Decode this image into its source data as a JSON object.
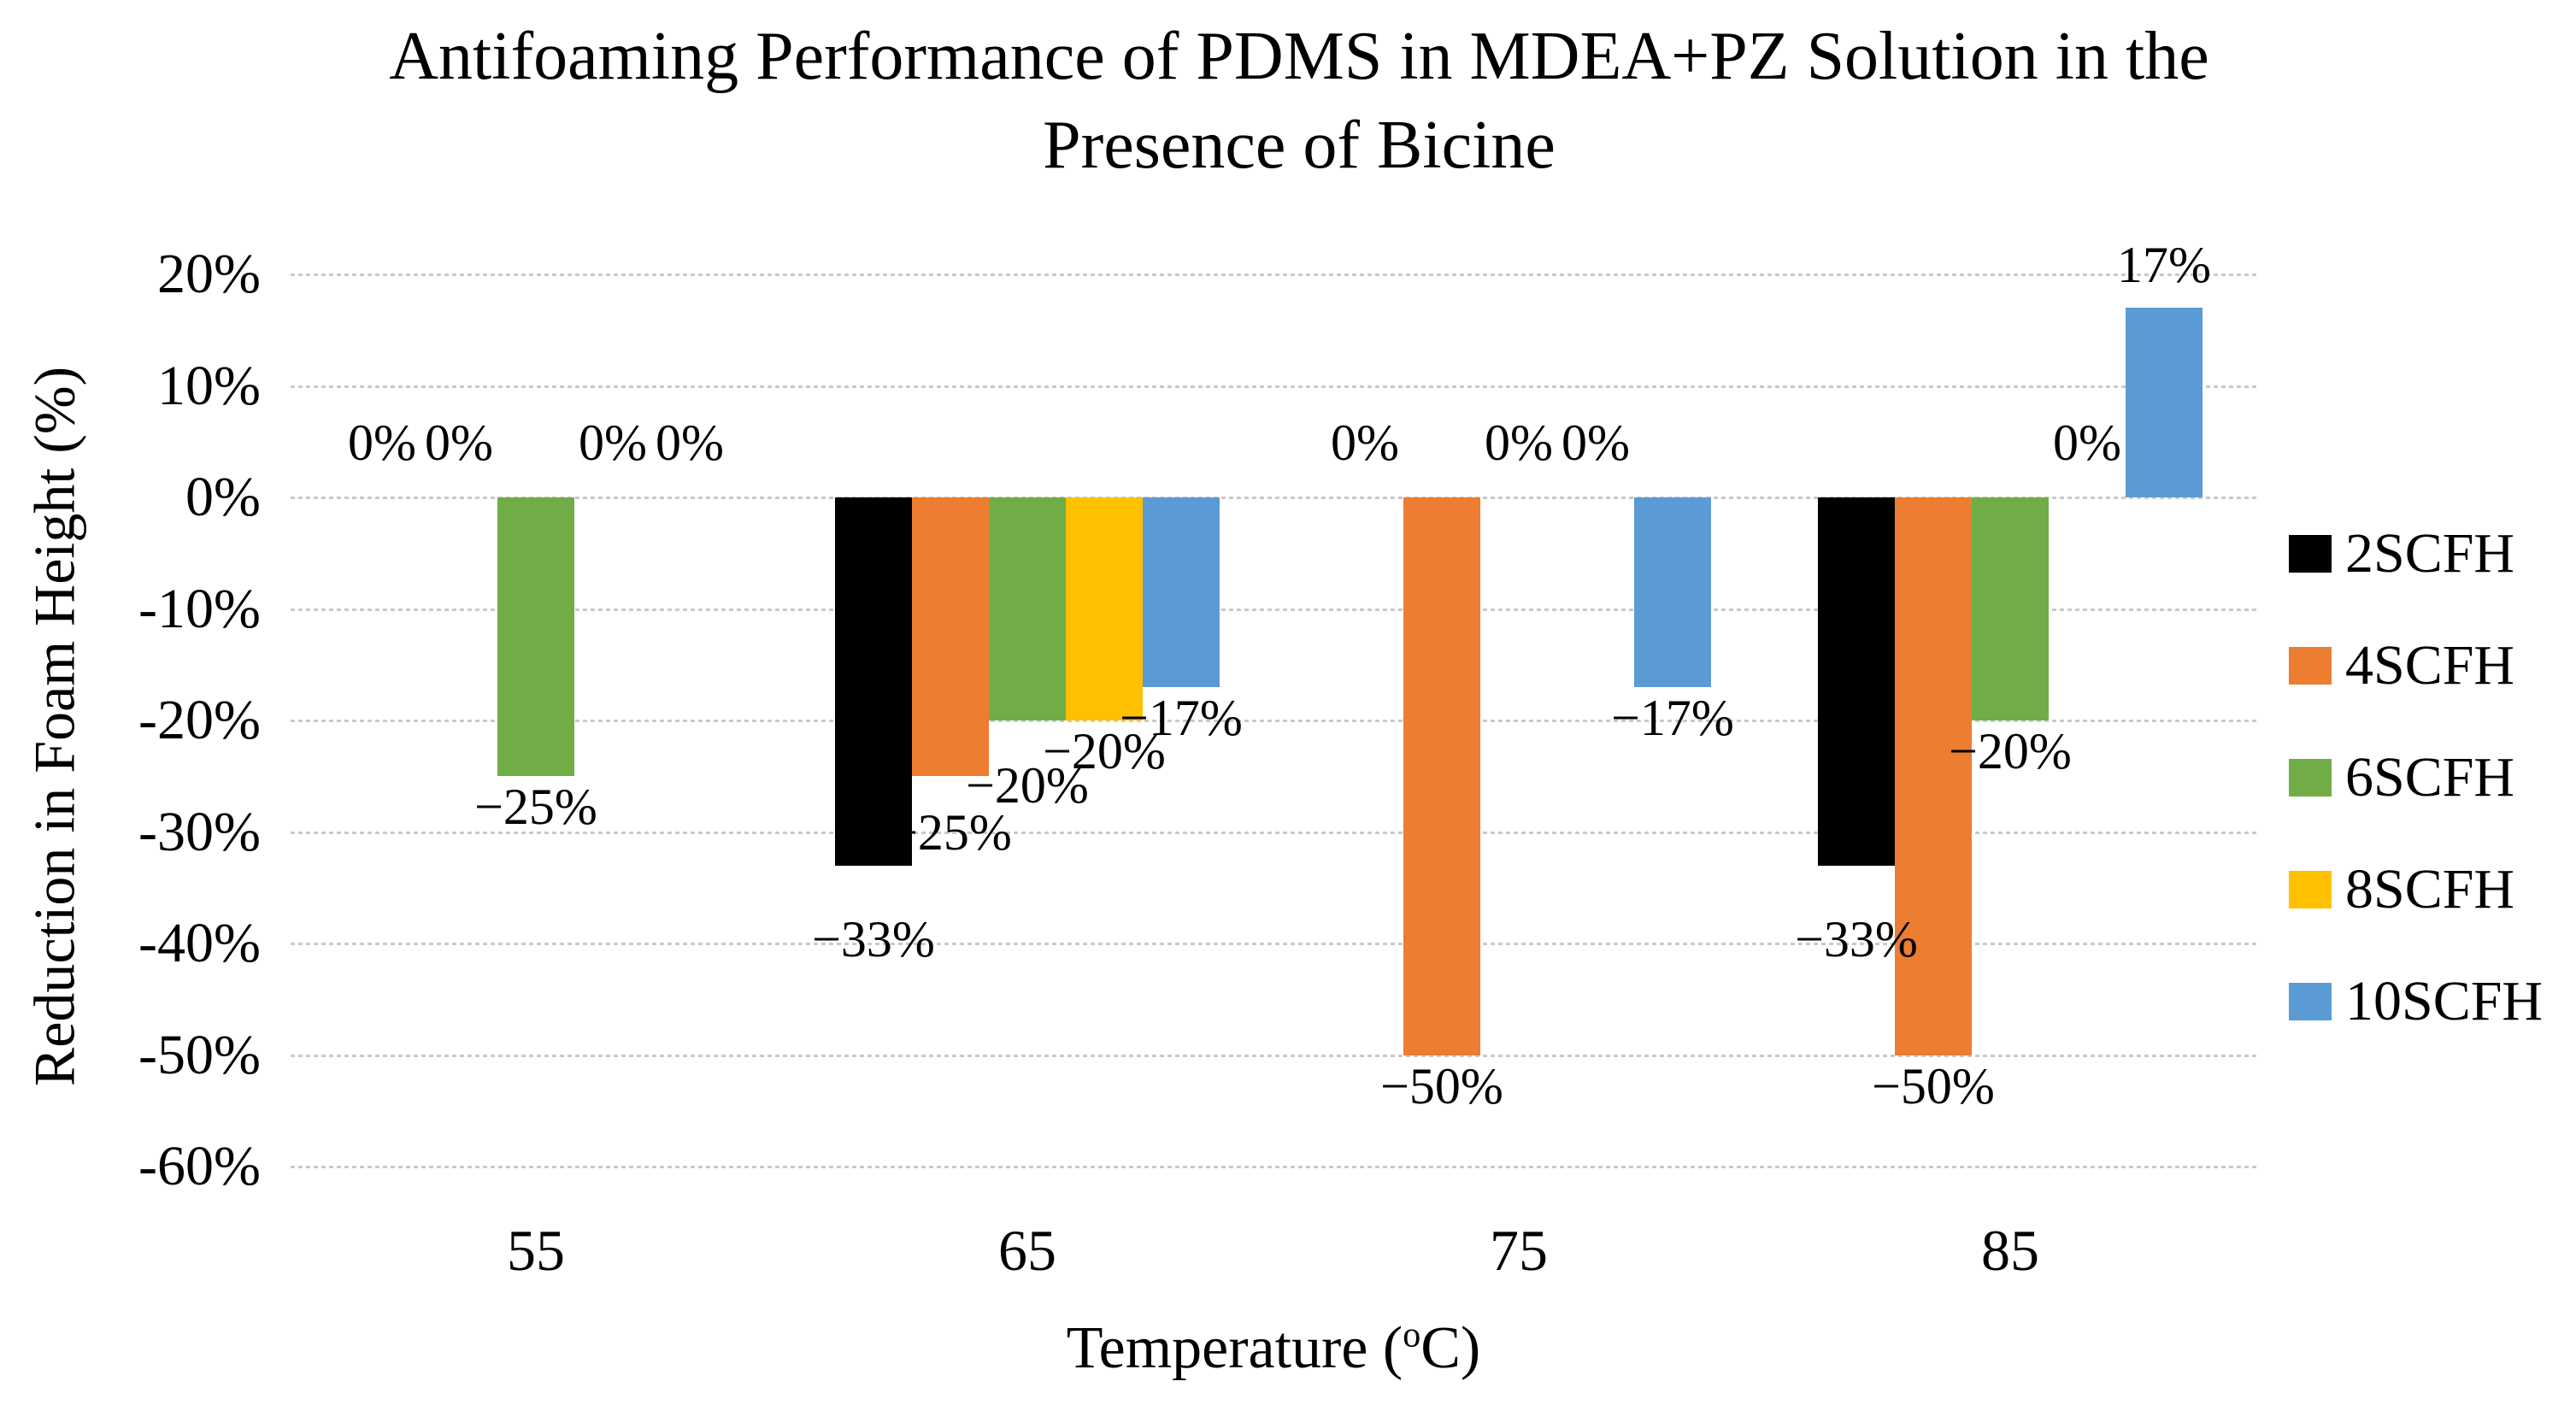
{
  "chart_data": {
    "type": "bar",
    "title": "Antifoaming Performance of PDMS in MDEA+PZ Solution in the Presence of Bicine",
    "title_lines": [
      "Antifoaming Performance of PDMS in MDEA+PZ Solution in the",
      "Presence of Bicine"
    ],
    "ylabel": "Reduction in Foam Height (%)",
    "xlabel": "Temperature (oC)",
    "xlabel_parts": {
      "prefix": "Temperature (",
      "degree_sup": "o",
      "suffix": "C)"
    },
    "categories": [
      "55",
      "65",
      "75",
      "85"
    ],
    "y_ticks": [
      "20%",
      "10%",
      "0%",
      "-10%",
      "-20%",
      "-30%",
      "-40%",
      "-50%",
      "-60%"
    ],
    "y_tick_values": [
      20,
      10,
      0,
      -10,
      -20,
      -30,
      -40,
      -50,
      -60
    ],
    "ylim": [
      -60,
      20
    ],
    "grid": "horizontal-dotted",
    "legend_position": "right",
    "series": [
      {
        "name": "2SCFH",
        "color": "#000000",
        "values": [
          0,
          -33,
          0,
          -33
        ],
        "labels": [
          "0%",
          "−33%",
          "0%",
          "−33%"
        ]
      },
      {
        "name": "4SCFH",
        "color": "#ED7D31",
        "values": [
          0,
          -25,
          -50,
          -50
        ],
        "labels": [
          "0%",
          "−25%",
          "−50%",
          "−50%"
        ]
      },
      {
        "name": "6SCFH",
        "color": "#70AD47",
        "values": [
          -25,
          -20,
          0,
          -20
        ],
        "labels": [
          "−25%",
          "−20%",
          "0%",
          "−20%"
        ]
      },
      {
        "name": "8SCFH",
        "color": "#FFC000",
        "values": [
          0,
          -20,
          0,
          0
        ],
        "labels": [
          "0%",
          "−20%",
          "0%",
          "0%"
        ]
      },
      {
        "name": "10SCFH",
        "color": "#5B9BD5",
        "values": [
          0,
          -17,
          -17,
          17
        ],
        "labels": [
          "0%",
          "−17%",
          "−17%",
          "17%"
        ]
      }
    ]
  },
  "colors": {
    "background": "#ffffff",
    "gridline": "#c9c9c9",
    "text": "#000000"
  }
}
